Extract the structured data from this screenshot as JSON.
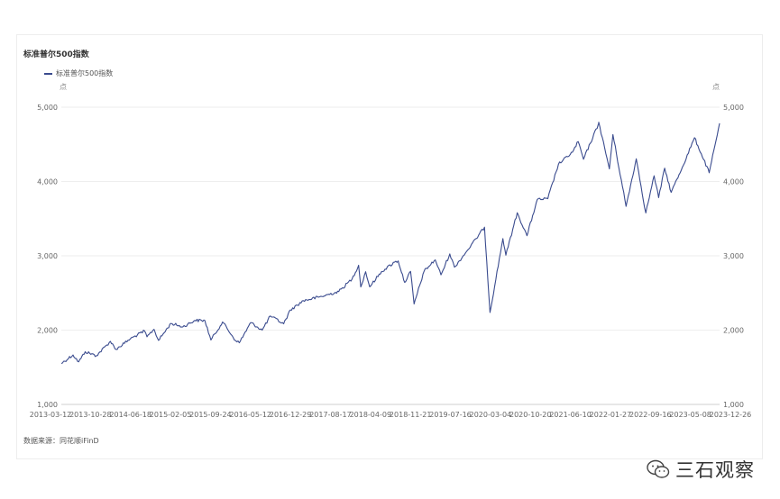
{
  "chart_data": {
    "type": "line",
    "title": "标准普尔500指数",
    "series": [
      {
        "name": "标准普尔500指数",
        "color": "#3a4b8e",
        "points": [
          [
            "2013-03-12",
            1552
          ],
          [
            "2013-05-21",
            1666
          ],
          [
            "2013-06-24",
            1573
          ],
          [
            "2013-08-02",
            1709
          ],
          [
            "2013-10-08",
            1656
          ],
          [
            "2013-12-31",
            1848
          ],
          [
            "2014-02-03",
            1741
          ],
          [
            "2014-04-30",
            1884
          ],
          [
            "2014-07-24",
            1988
          ],
          [
            "2014-08-07",
            1910
          ],
          [
            "2014-09-18",
            2011
          ],
          [
            "2014-10-15",
            1862
          ],
          [
            "2014-12-29",
            2090
          ],
          [
            "2015-03-10",
            2044
          ],
          [
            "2015-05-21",
            2131
          ],
          [
            "2015-07-20",
            2128
          ],
          [
            "2015-08-25",
            1867
          ],
          [
            "2015-11-03",
            2109
          ],
          [
            "2016-01-20",
            1859
          ],
          [
            "2016-02-11",
            1829
          ],
          [
            "2016-04-20",
            2102
          ],
          [
            "2016-06-27",
            2000
          ],
          [
            "2016-08-15",
            2190
          ],
          [
            "2016-11-03",
            2085
          ],
          [
            "2016-12-13",
            2271
          ],
          [
            "2017-03-01",
            2396
          ],
          [
            "2017-06-19",
            2453
          ],
          [
            "2017-09-29",
            2519
          ],
          [
            "2017-12-18",
            2690
          ],
          [
            "2018-01-26",
            2873
          ],
          [
            "2018-02-08",
            2581
          ],
          [
            "2018-03-09",
            2786
          ],
          [
            "2018-04-02",
            2582
          ],
          [
            "2018-06-12",
            2787
          ],
          [
            "2018-08-29",
            2914
          ],
          [
            "2018-09-20",
            2931
          ],
          [
            "2018-10-29",
            2641
          ],
          [
            "2018-12-03",
            2790
          ],
          [
            "2018-12-24",
            2351
          ],
          [
            "2019-02-22",
            2792
          ],
          [
            "2019-04-30",
            2946
          ],
          [
            "2019-06-03",
            2744
          ],
          [
            "2019-07-26",
            3025
          ],
          [
            "2019-08-23",
            2847
          ],
          [
            "2019-10-28",
            3039
          ],
          [
            "2019-12-31",
            3231
          ],
          [
            "2020-02-19",
            3386
          ],
          [
            "2020-03-23",
            2237
          ],
          [
            "2020-06-08",
            3232
          ],
          [
            "2020-06-26",
            3009
          ],
          [
            "2020-09-02",
            3580
          ],
          [
            "2020-10-30",
            3270
          ],
          [
            "2020-12-31",
            3756
          ],
          [
            "2021-03-04",
            3768
          ],
          [
            "2021-05-07",
            4232
          ],
          [
            "2021-07-30",
            4395
          ],
          [
            "2021-09-02",
            4537
          ],
          [
            "2021-10-04",
            4300
          ],
          [
            "2021-12-31",
            4766
          ],
          [
            "2022-01-03",
            4797
          ],
          [
            "2022-03-08",
            4170
          ],
          [
            "2022-03-29",
            4632
          ],
          [
            "2022-06-16",
            3666
          ],
          [
            "2022-08-16",
            4305
          ],
          [
            "2022-10-12",
            3577
          ],
          [
            "2022-12-01",
            4076
          ],
          [
            "2022-12-28",
            3783
          ],
          [
            "2023-02-02",
            4179
          ],
          [
            "2023-03-13",
            3855
          ],
          [
            "2023-05-19",
            4192
          ],
          [
            "2023-07-31",
            4589
          ],
          [
            "2023-10-27",
            4117
          ],
          [
            "2023-12-28",
            4783
          ]
        ]
      }
    ],
    "x_type": "date",
    "x_ticks": [
      "2013-03-12",
      "2013-10-28",
      "2014-06-18",
      "2015-02-05",
      "2015-09-24",
      "2016-05-12",
      "2016-12-29",
      "2017-08-17",
      "2018-04-09",
      "2018-11-21",
      "2019-07-16",
      "2020-03-04",
      "2020-10-20",
      "2021-06-10",
      "2022-01-27",
      "2022-09-16",
      "2023-05-08",
      "2023-12-26"
    ],
    "xlim": [
      "2013-03-12",
      "2023-12-28"
    ],
    "ylim": [
      1000,
      5000
    ],
    "y_ticks": [
      1000,
      2000,
      3000,
      4000,
      5000
    ],
    "y_tick_labels": [
      "1,000",
      "2,000",
      "3,000",
      "4,000",
      "5,000"
    ],
    "y_unit_left": "点",
    "y_unit_right": "点",
    "grid": "horizontal",
    "legend": "top-left",
    "dual_y_axis": true
  },
  "source": "数据来源：同花顺iFinD",
  "watermark": {
    "icon": "wechat-icon",
    "text": "三石观察"
  }
}
